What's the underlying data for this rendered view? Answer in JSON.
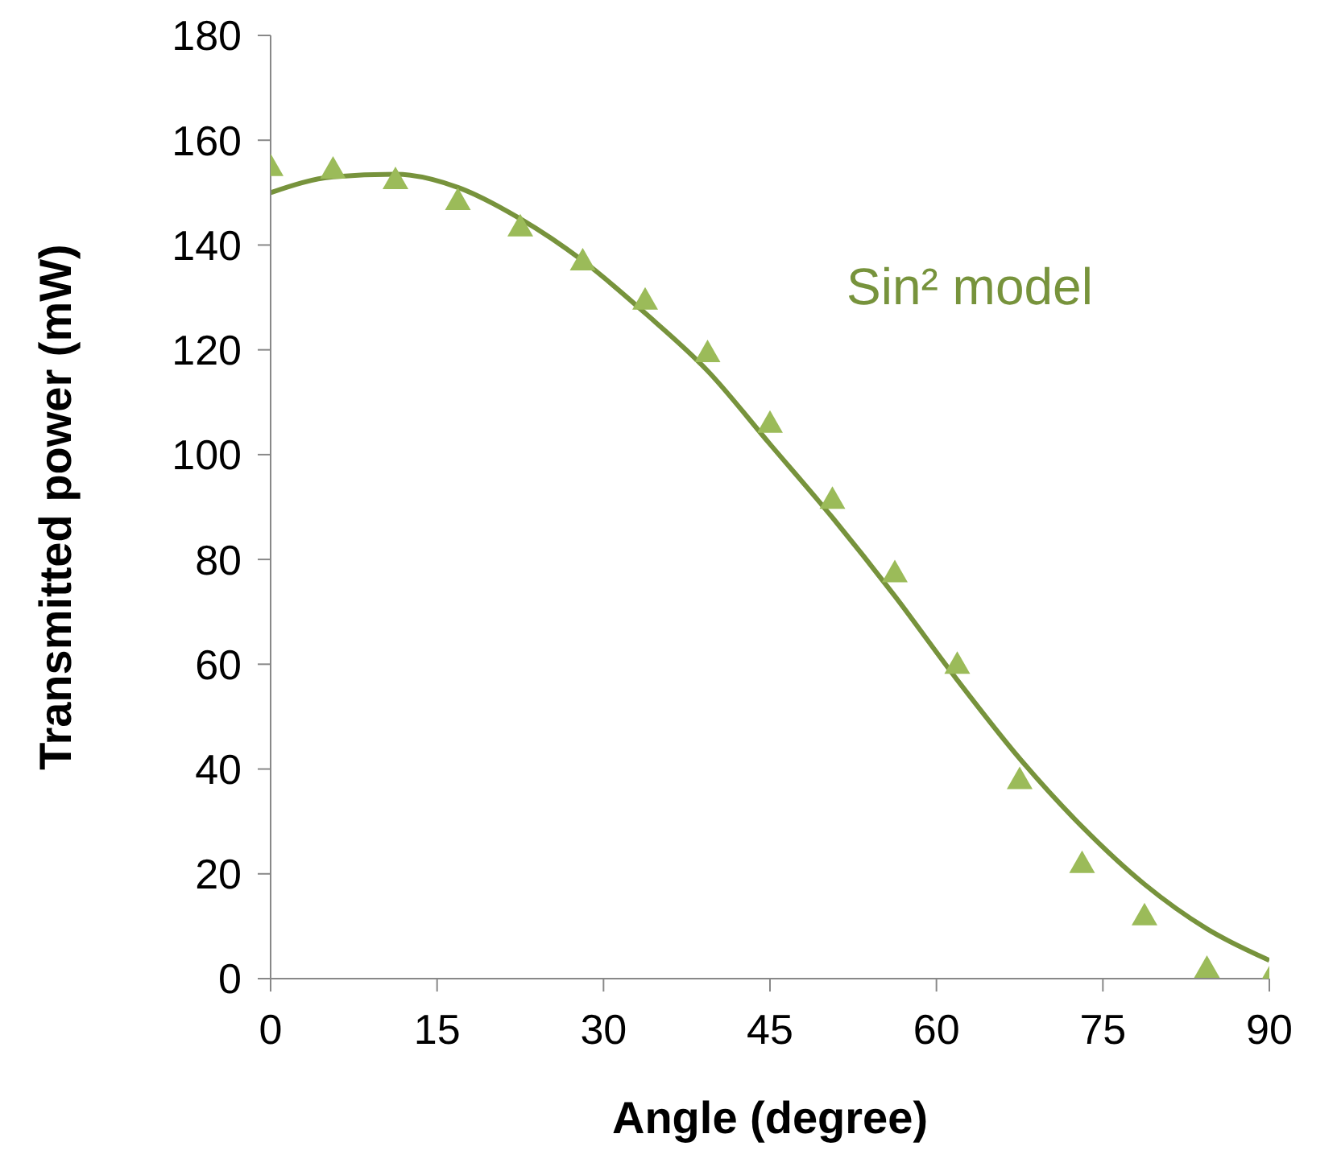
{
  "chart_data": {
    "type": "scatter",
    "xlabel": "Angle (degree)",
    "ylabel": "Transmitted power (mW)",
    "x": [
      0,
      5.625,
      11.25,
      16.875,
      22.5,
      28.125,
      33.75,
      39.375,
      45,
      50.625,
      56.25,
      61.875,
      67.5,
      73.125,
      78.75,
      84.375,
      90
    ],
    "series": [
      {
        "color": "#9bbb59",
        "marker": "triangle",
        "values": [
          155,
          154.5,
          152.5,
          148.5,
          143.5,
          137,
          129.5,
          119.5,
          106,
          91.5,
          77.5,
          60,
          38,
          22,
          12,
          2,
          0
        ]
      },
      {
        "type": "line",
        "name": "Sin² model",
        "color": "#77933c",
        "marker": "none",
        "values": [
          150,
          153,
          153.5,
          151,
          145,
          137,
          127,
          116,
          102,
          88,
          73,
          57,
          42,
          29,
          18,
          9.5,
          3.5
        ]
      }
    ],
    "xlim": [
      0,
      90
    ],
    "xticks": [
      0,
      15,
      30,
      45,
      60,
      75,
      90
    ],
    "ylim": [
      0,
      180
    ],
    "yticks": [
      0,
      20,
      40,
      60,
      80,
      100,
      120,
      140,
      160,
      180
    ],
    "grid": false,
    "legend": false
  }
}
